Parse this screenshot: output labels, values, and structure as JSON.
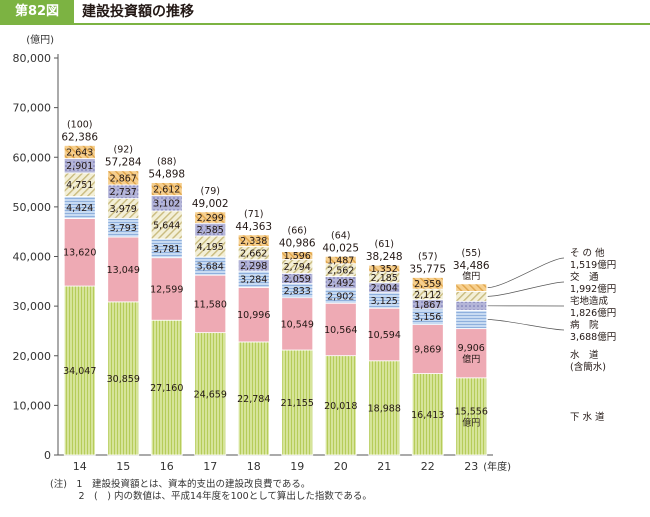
{
  "figure": {
    "label": "第82図",
    "title": "建設投資額の推移"
  },
  "colors": {
    "header_green": "#7cb342",
    "sewer": "#d6e49a",
    "water": "#eeaab4",
    "hospital": "#b9d0ec",
    "residential": "#a7a8cf",
    "other": "#f2c98a"
  },
  "chart_data": {
    "type": "bar",
    "stacked": true,
    "ylabel": "(億円)",
    "ylim": [
      0,
      80000
    ],
    "yticks": [
      0,
      10000,
      20000,
      30000,
      40000,
      50000,
      60000,
      70000,
      80000
    ],
    "ytick_labels": [
      "0",
      "10,000",
      "20,000",
      "30,000",
      "40,000",
      "50,000",
      "60,000",
      "70,000",
      "80,000"
    ],
    "categories": [
      "14",
      "15",
      "16",
      "17",
      "18",
      "19",
      "20",
      "21",
      "22",
      "23"
    ],
    "x_unit": "(年度)",
    "grid": false,
    "totals": [
      62386,
      57284,
      54898,
      49002,
      44363,
      40986,
      40025,
      38248,
      35775,
      34486
    ],
    "total_labels": [
      "62,386",
      "57,284",
      "54,898",
      "49,002",
      "44,363",
      "40,986",
      "40,025",
      "38,248",
      "35,775",
      "34,486"
    ],
    "total_unit_label": "億円",
    "index": [
      "(100)",
      "(92)",
      "(88)",
      "(79)",
      "(71)",
      "(66)",
      "(64)",
      "(61)",
      "(57)",
      "(55)"
    ],
    "series": [
      {
        "key": "sewer",
        "values": [
          34047,
          30859,
          27160,
          24659,
          22784,
          21155,
          20018,
          18988,
          16413,
          15556
        ],
        "labels": [
          "34,047",
          "30,859",
          "27,160",
          "24,659",
          "22,784",
          "21,155",
          "20,018",
          "18,988",
          "16,413",
          "15,556"
        ],
        "last_unit": "億円",
        "legend_lines": [
          "下 水 道"
        ]
      },
      {
        "key": "water",
        "values": [
          13620,
          13049,
          12599,
          11580,
          10996,
          10549,
          10564,
          10594,
          9869,
          9906
        ],
        "labels": [
          "13,620",
          "13,049",
          "12,599",
          "11,580",
          "10,996",
          "10,549",
          "10,564",
          "10,594",
          "9,869",
          "9,906"
        ],
        "last_unit": "億円",
        "legend_lines": [
          "水　道",
          "(含簡水)"
        ]
      },
      {
        "key": "hospital",
        "values": [
          4424,
          3793,
          3781,
          3684,
          3284,
          2833,
          2902,
          3125,
          3156,
          3688
        ],
        "labels": [
          "4,424",
          "3,793",
          "3,781",
          "3,684",
          "3,284",
          "2,833",
          "2,902",
          "3,125",
          "3,156",
          ""
        ],
        "legend_lines": [
          "病　院",
          "3,688億円"
        ]
      },
      {
        "key": "residential",
        "values": [
          0,
          0,
          0,
          0,
          2298,
          2059,
          2492,
          2004,
          1867,
          1826
        ],
        "labels": [
          "",
          "",
          "",
          "",
          "2,298",
          "2,059",
          "2,492",
          "2,004",
          "1,867",
          ""
        ],
        "legend_lines": [
          "宅地造成",
          "1,826億円"
        ]
      },
      {
        "key": "traffic",
        "values": [
          4751,
          3979,
          5644,
          4195,
          2662,
          2794,
          2562,
          2185,
          2112,
          1992
        ],
        "labels": [
          "4,751",
          "3,979",
          "5,644",
          "4,195",
          "2,662",
          "2,794",
          "2,562",
          "2,185",
          "2,112",
          ""
        ],
        "legend_lines": [
          "交　通",
          "1,992億円"
        ]
      },
      {
        "key": "residential_upper",
        "values": [
          2901,
          2737,
          3102,
          2585,
          0,
          0,
          0,
          0,
          0,
          0
        ],
        "labels": [
          "2,901",
          "2,737",
          "3,102",
          "2,585",
          "",
          "",
          "",
          "",
          "",
          ""
        ]
      },
      {
        "key": "other",
        "values": [
          2643,
          2867,
          2612,
          2299,
          2338,
          1596,
          1487,
          1352,
          2359,
          1519
        ],
        "labels": [
          "2,643",
          "2,867",
          "2,612",
          "2,299",
          "2,338",
          "1,596",
          "1,487",
          "1,352",
          "2,359",
          ""
        ],
        "legend_lines": [
          "そ の 他",
          "1,519億円"
        ]
      }
    ]
  },
  "notes": [
    "(注)　1　建設投資額とは、資本的支出の建設改良費である。",
    "　　　2　(　) 内の数値は、平成14年度を100として算出した指数である。"
  ]
}
